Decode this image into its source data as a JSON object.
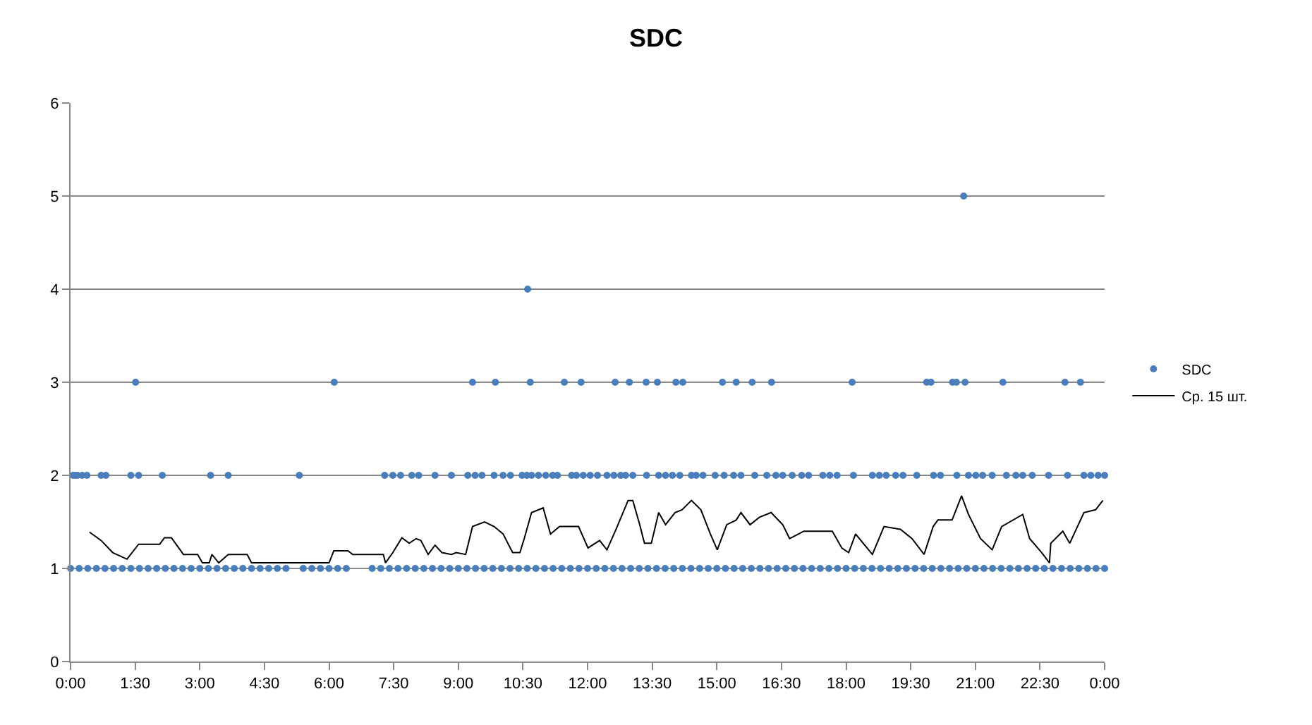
{
  "chart_data": {
    "type": "scatter",
    "title": "SDC",
    "legend": "right",
    "grid": "y",
    "xlim": [
      0,
      24
    ],
    "xticks": [
      {
        "value": 0,
        "label": "0:00"
      },
      {
        "value": 1.5,
        "label": "1:30"
      },
      {
        "value": 3,
        "label": "3:00"
      },
      {
        "value": 4.5,
        "label": "4:30"
      },
      {
        "value": 6,
        "label": "6:00"
      },
      {
        "value": 7.5,
        "label": "7:30"
      },
      {
        "value": 9,
        "label": "9:00"
      },
      {
        "value": 10.5,
        "label": "10:30"
      },
      {
        "value": 12,
        "label": "12:00"
      },
      {
        "value": 13.5,
        "label": "13:30"
      },
      {
        "value": 15,
        "label": "15:00"
      },
      {
        "value": 16.5,
        "label": "16:30"
      },
      {
        "value": 18,
        "label": "18:00"
      },
      {
        "value": 19.5,
        "label": "19:30"
      },
      {
        "value": 21,
        "label": "21:00"
      },
      {
        "value": 22.5,
        "label": "22:30"
      },
      {
        "value": 24,
        "label": "0:00"
      }
    ],
    "ylim": [
      0,
      6
    ],
    "yticks": [
      0,
      1,
      2,
      3,
      4,
      5,
      6
    ],
    "series": [
      {
        "name": "SDC",
        "type": "scatter",
        "marker": "circle",
        "color": "#4a7ebb",
        "x": [
          0.0,
          0.2,
          0.4,
          0.6,
          0.8,
          1.0,
          1.2,
          1.4,
          1.6,
          1.8,
          2.0,
          2.2,
          2.4,
          2.6,
          2.8,
          3.0,
          3.2,
          3.4,
          3.6,
          3.8,
          4.0,
          4.2,
          4.4,
          4.6,
          4.8,
          5.0,
          5.4,
          5.6,
          5.8,
          6.0,
          6.2,
          6.4,
          7.0,
          7.2,
          7.4,
          7.6,
          7.8,
          8.0,
          8.2,
          8.4,
          8.6,
          8.8,
          9.0,
          9.2,
          9.4,
          9.6,
          9.8,
          10.0,
          10.2,
          10.4,
          10.6,
          10.8,
          11.0,
          11.2,
          11.4,
          11.6,
          11.8,
          12.0,
          12.2,
          12.4,
          12.6,
          12.8,
          13.0,
          13.2,
          13.4,
          13.6,
          13.8,
          14.0,
          14.2,
          14.4,
          14.6,
          14.8,
          15.0,
          15.2,
          15.4,
          15.6,
          15.8,
          16.0,
          16.2,
          16.4,
          16.6,
          16.8,
          17.0,
          17.2,
          17.4,
          17.6,
          17.8,
          18.0,
          18.2,
          18.4,
          18.6,
          18.8,
          19.0,
          19.2,
          19.4,
          19.6,
          19.8,
          20.0,
          20.2,
          20.4,
          20.6,
          20.8,
          21.0,
          21.2,
          21.4,
          21.6,
          21.8,
          22.0,
          22.2,
          22.4,
          22.6,
          22.8,
          23.0,
          23.2,
          23.4,
          23.6,
          23.8,
          24.0,
          0.06,
          0.11,
          0.16,
          0.27,
          0.38,
          0.71,
          0.82,
          1.4,
          1.58,
          2.13,
          3.25,
          3.66,
          5.31,
          7.29,
          7.48,
          7.66,
          7.92,
          8.08,
          8.46,
          8.84,
          9.22,
          9.39,
          9.55,
          9.83,
          10.04,
          10.21,
          10.48,
          10.59,
          10.7,
          10.86,
          11.03,
          11.19,
          11.3,
          11.63,
          11.74,
          11.9,
          12.06,
          12.23,
          12.45,
          12.61,
          12.77,
          12.88,
          13.05,
          13.37,
          13.65,
          13.81,
          13.97,
          14.14,
          14.41,
          14.52,
          14.68,
          14.96,
          15.17,
          15.39,
          15.56,
          15.88,
          16.16,
          16.37,
          16.53,
          16.75,
          16.97,
          17.13,
          17.46,
          17.62,
          17.79,
          18.17,
          18.61,
          18.77,
          18.93,
          19.15,
          19.32,
          19.64,
          20.03,
          20.19,
          20.57,
          20.84,
          21.01,
          21.17,
          21.39,
          21.72,
          21.94,
          22.1,
          22.32,
          22.7,
          23.14,
          23.52,
          23.68,
          23.85,
          24.0,
          1.51,
          6.12,
          9.33,
          9.86,
          10.67,
          11.46,
          11.85,
          12.64,
          12.97,
          13.36,
          13.62,
          14.05,
          14.21,
          15.13,
          15.45,
          15.82,
          16.27,
          18.14,
          19.87,
          19.97,
          20.47,
          20.56,
          20.76,
          21.64,
          23.08,
          23.44,
          10.61,
          20.73
        ],
        "values": [
          1,
          1,
          1,
          1,
          1,
          1,
          1,
          1,
          1,
          1,
          1,
          1,
          1,
          1,
          1,
          1,
          1,
          1,
          1,
          1,
          1,
          1,
          1,
          1,
          1,
          1,
          1,
          1,
          1,
          1,
          1,
          1,
          1,
          1,
          1,
          1,
          1,
          1,
          1,
          1,
          1,
          1,
          1,
          1,
          1,
          1,
          1,
          1,
          1,
          1,
          1,
          1,
          1,
          1,
          1,
          1,
          1,
          1,
          1,
          1,
          1,
          1,
          1,
          1,
          1,
          1,
          1,
          1,
          1,
          1,
          1,
          1,
          1,
          1,
          1,
          1,
          1,
          1,
          1,
          1,
          1,
          1,
          1,
          1,
          1,
          1,
          1,
          1,
          1,
          1,
          1,
          1,
          1,
          1,
          1,
          1,
          1,
          1,
          1,
          1,
          1,
          1,
          1,
          1,
          1,
          1,
          1,
          1,
          1,
          1,
          1,
          1,
          1,
          1,
          1,
          1,
          1,
          1,
          2,
          2,
          2,
          2,
          2,
          2,
          2,
          2,
          2,
          2,
          2,
          2,
          2,
          2,
          2,
          2,
          2,
          2,
          2,
          2,
          2,
          2,
          2,
          2,
          2,
          2,
          2,
          2,
          2,
          2,
          2,
          2,
          2,
          2,
          2,
          2,
          2,
          2,
          2,
          2,
          2,
          2,
          2,
          2,
          2,
          2,
          2,
          2,
          2,
          2,
          2,
          2,
          2,
          2,
          2,
          2,
          2,
          2,
          2,
          2,
          2,
          2,
          2,
          2,
          2,
          2,
          2,
          2,
          2,
          2,
          2,
          2,
          2,
          2,
          2,
          2,
          2,
          2,
          2,
          2,
          2,
          2,
          2,
          2,
          2,
          2,
          2,
          2,
          2,
          3,
          3,
          3,
          3,
          3,
          3,
          3,
          3,
          3,
          3,
          3,
          3,
          3,
          3,
          3,
          3,
          3,
          3,
          3,
          3,
          3,
          3,
          3,
          3,
          3,
          3,
          4,
          5
        ]
      },
      {
        "name": "Ср. 15 шт.",
        "type": "line",
        "marker": "none",
        "color": "#000000",
        "x": [
          0.44,
          0.71,
          0.98,
          1.31,
          1.58,
          2.07,
          2.18,
          2.34,
          2.62,
          2.95,
          3.06,
          3.22,
          3.28,
          3.44,
          3.66,
          4.1,
          4.2,
          6.0,
          6.11,
          6.44,
          6.55,
          7.26,
          7.31,
          7.48,
          7.69,
          7.86,
          8.02,
          8.13,
          8.3,
          8.46,
          8.62,
          8.84,
          8.95,
          9.17,
          9.33,
          9.61,
          9.83,
          10.04,
          10.26,
          10.43,
          10.53,
          10.7,
          10.97,
          11.14,
          11.35,
          11.63,
          11.79,
          12.01,
          12.28,
          12.45,
          12.66,
          12.94,
          13.05,
          13.21,
          13.32,
          13.48,
          13.65,
          13.81,
          14.03,
          14.19,
          14.41,
          14.63,
          14.85,
          15.01,
          15.23,
          15.45,
          15.56,
          15.77,
          15.99,
          16.26,
          16.53,
          16.69,
          17.02,
          17.68,
          17.9,
          18.06,
          18.22,
          18.61,
          18.88,
          19.26,
          19.53,
          19.81,
          20.02,
          20.13,
          20.46,
          20.68,
          20.84,
          21.12,
          21.39,
          21.61,
          22.1,
          22.26,
          22.54,
          22.72,
          22.75,
          23.03,
          23.19,
          23.52,
          23.79,
          23.96
        ],
        "values": [
          1.39,
          1.3,
          1.17,
          1.1,
          1.26,
          1.26,
          1.33,
          1.33,
          1.15,
          1.15,
          1.06,
          1.06,
          1.15,
          1.06,
          1.15,
          1.15,
          1.06,
          1.06,
          1.19,
          1.19,
          1.15,
          1.15,
          1.06,
          1.17,
          1.33,
          1.27,
          1.32,
          1.3,
          1.15,
          1.25,
          1.17,
          1.15,
          1.17,
          1.15,
          1.45,
          1.5,
          1.45,
          1.37,
          1.17,
          1.17,
          1.32,
          1.6,
          1.65,
          1.37,
          1.45,
          1.45,
          1.45,
          1.22,
          1.3,
          1.2,
          1.42,
          1.73,
          1.73,
          1.47,
          1.27,
          1.27,
          1.6,
          1.47,
          1.6,
          1.63,
          1.73,
          1.63,
          1.37,
          1.2,
          1.47,
          1.52,
          1.6,
          1.47,
          1.55,
          1.6,
          1.47,
          1.32,
          1.4,
          1.4,
          1.22,
          1.17,
          1.37,
          1.15,
          1.45,
          1.42,
          1.32,
          1.15,
          1.45,
          1.52,
          1.52,
          1.78,
          1.58,
          1.32,
          1.2,
          1.45,
          1.58,
          1.32,
          1.17,
          1.06,
          1.27,
          1.4,
          1.27,
          1.6,
          1.63,
          1.73
        ]
      }
    ]
  }
}
